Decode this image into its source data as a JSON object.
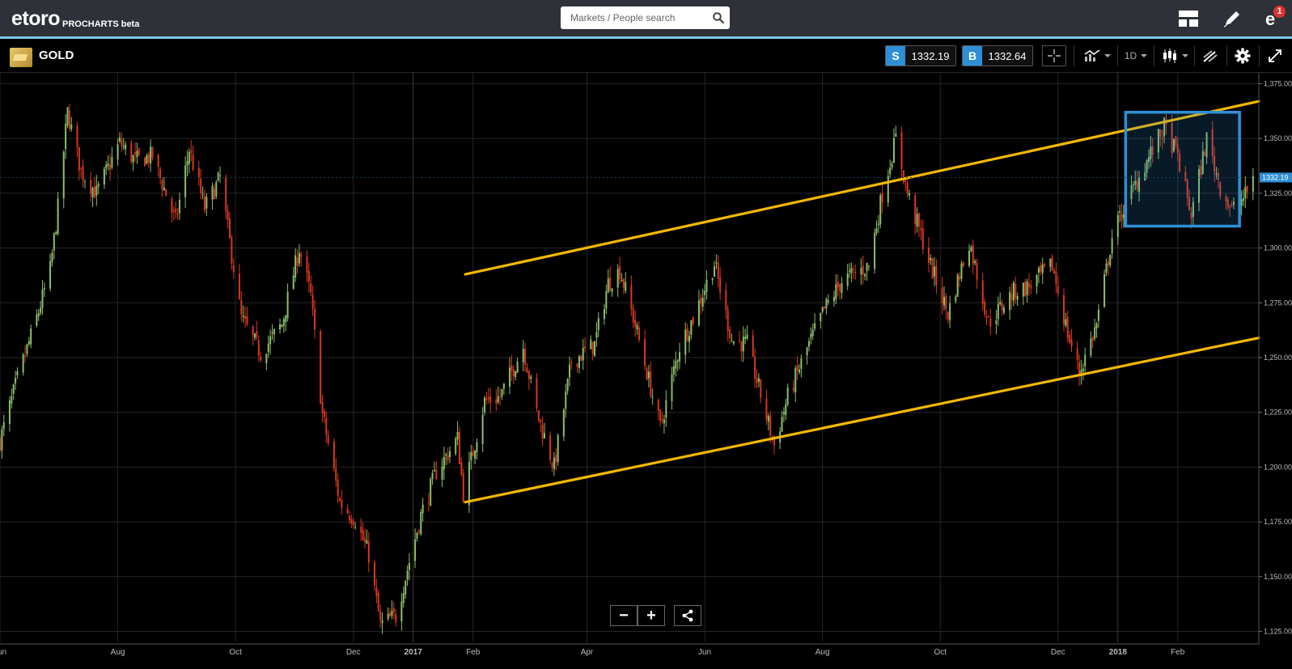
{
  "header": {
    "logo_text": "etoro",
    "logo_sub": "PROCHARTS beta",
    "search_placeholder": "Markets / People search",
    "notification_count": "1"
  },
  "instrument": {
    "name": "GOLD",
    "sell_label": "S",
    "sell_price": "1332.19",
    "buy_label": "B",
    "buy_price": "1332.64",
    "timeframe": "1D"
  },
  "zoom": {
    "out_label": "−",
    "in_label": "+"
  },
  "colors": {
    "up_candle": "#8dbf6a",
    "down_candle": "#d9381e",
    "trendline": "#f5b800",
    "highlight": "#2f8fd6",
    "price_marker": "#2f8fd6",
    "accent_line": "#7fc4ea"
  },
  "chart_data": {
    "type": "candlestick",
    "title": "",
    "ylim": [
      1120,
      1380
    ],
    "y_ticks": [
      "1,125.00",
      "1,150.00",
      "1,175.00",
      "1,200.00",
      "1,225.00",
      "1,250.00",
      "1,275.00",
      "1,300.00",
      "1,325.00",
      "1,350.00",
      "1,375.00"
    ],
    "y_tick_values": [
      1125,
      1150,
      1175,
      1200,
      1225,
      1250,
      1275,
      1300,
      1325,
      1350,
      1375
    ],
    "x_start": "2016-06-01",
    "x_end": "2018-03-15",
    "x_ticks": [
      {
        "label": "Jun",
        "date": "2016-06-01"
      },
      {
        "label": "Aug",
        "date": "2016-08-01"
      },
      {
        "label": "Oct",
        "date": "2016-10-01"
      },
      {
        "label": "Dec",
        "date": "2016-12-01"
      },
      {
        "label": "2017",
        "date": "2017-01-01"
      },
      {
        "label": "Feb",
        "date": "2017-02-01"
      },
      {
        "label": "Apr",
        "date": "2017-04-01"
      },
      {
        "label": "Jun",
        "date": "2017-06-01"
      },
      {
        "label": "Aug",
        "date": "2017-08-01"
      },
      {
        "label": "Oct",
        "date": "2017-10-01"
      },
      {
        "label": "Dec",
        "date": "2017-12-01"
      },
      {
        "label": "2018",
        "date": "2018-01-01"
      },
      {
        "label": "Feb",
        "date": "2018-02-01"
      }
    ],
    "close_path": [
      [
        "2016-06-01",
        1212
      ],
      [
        "2016-06-10",
        1240
      ],
      [
        "2016-06-20",
        1268
      ],
      [
        "2016-06-27",
        1290
      ],
      [
        "2016-07-01",
        1318
      ],
      [
        "2016-07-06",
        1362
      ],
      [
        "2016-07-13",
        1335
      ],
      [
        "2016-07-21",
        1325
      ],
      [
        "2016-08-02",
        1348
      ],
      [
        "2016-08-10",
        1340
      ],
      [
        "2016-08-19",
        1342
      ],
      [
        "2016-08-31",
        1312
      ],
      [
        "2016-09-07",
        1345
      ],
      [
        "2016-09-15",
        1318
      ],
      [
        "2016-09-23",
        1332
      ],
      [
        "2016-10-04",
        1268
      ],
      [
        "2016-10-14",
        1252
      ],
      [
        "2016-10-25",
        1265
      ],
      [
        "2016-11-03",
        1300
      ],
      [
        "2016-11-09",
        1278
      ],
      [
        "2016-11-15",
        1224
      ],
      [
        "2016-11-24",
        1184
      ],
      [
        "2016-12-02",
        1176
      ],
      [
        "2016-12-09",
        1160
      ],
      [
        "2016-12-15",
        1128
      ],
      [
        "2016-12-23",
        1132
      ],
      [
        "2017-01-05",
        1178
      ],
      [
        "2017-01-13",
        1198
      ],
      [
        "2017-01-24",
        1213
      ],
      [
        "2017-01-27",
        1188
      ],
      [
        "2017-02-07",
        1230
      ],
      [
        "2017-02-15",
        1232
      ],
      [
        "2017-02-27",
        1255
      ],
      [
        "2017-03-06",
        1225
      ],
      [
        "2017-03-15",
        1200
      ],
      [
        "2017-03-24",
        1248
      ],
      [
        "2017-04-05",
        1256
      ],
      [
        "2017-04-12",
        1284
      ],
      [
        "2017-04-18",
        1290
      ],
      [
        "2017-04-26",
        1265
      ],
      [
        "2017-05-09",
        1218
      ],
      [
        "2017-05-19",
        1255
      ],
      [
        "2017-05-26",
        1268
      ],
      [
        "2017-06-06",
        1293
      ],
      [
        "2017-06-15",
        1258
      ],
      [
        "2017-06-23",
        1256
      ],
      [
        "2017-07-07",
        1210
      ],
      [
        "2017-07-14",
        1232
      ],
      [
        "2017-07-24",
        1254
      ],
      [
        "2017-08-02",
        1272
      ],
      [
        "2017-08-11",
        1285
      ],
      [
        "2017-08-25",
        1292
      ],
      [
        "2017-09-01",
        1325
      ],
      [
        "2017-09-08",
        1350
      ],
      [
        "2017-09-14",
        1325
      ],
      [
        "2017-09-26",
        1292
      ],
      [
        "2017-10-05",
        1270
      ],
      [
        "2017-10-16",
        1303
      ],
      [
        "2017-10-26",
        1266
      ],
      [
        "2017-11-08",
        1280
      ],
      [
        "2017-11-15",
        1282
      ],
      [
        "2017-11-28",
        1292
      ],
      [
        "2017-12-06",
        1261
      ],
      [
        "2017-12-12",
        1243
      ],
      [
        "2017-12-21",
        1265
      ],
      [
        "2017-12-29",
        1305
      ],
      [
        "2018-01-05",
        1320
      ],
      [
        "2018-01-15",
        1338
      ],
      [
        "2018-01-25",
        1355
      ],
      [
        "2018-02-01",
        1342
      ],
      [
        "2018-02-08",
        1315
      ],
      [
        "2018-02-16",
        1350
      ],
      [
        "2018-02-23",
        1328
      ],
      [
        "2018-03-01",
        1317
      ],
      [
        "2018-03-08",
        1324
      ],
      [
        "2018-03-12",
        1332
      ]
    ],
    "last_price": 1332.19,
    "trendlines": [
      {
        "start": [
          "2017-01-28",
          1288
        ],
        "end": [
          "2018-03-15",
          1367
        ]
      },
      {
        "start": [
          "2017-01-28",
          1184
        ],
        "end": [
          "2018-03-15",
          1259
        ]
      }
    ],
    "highlight_box": {
      "date_start": "2018-01-05",
      "date_end": "2018-03-05",
      "price_low": 1310,
      "price_high": 1362
    },
    "grid": true,
    "legend": "none"
  }
}
